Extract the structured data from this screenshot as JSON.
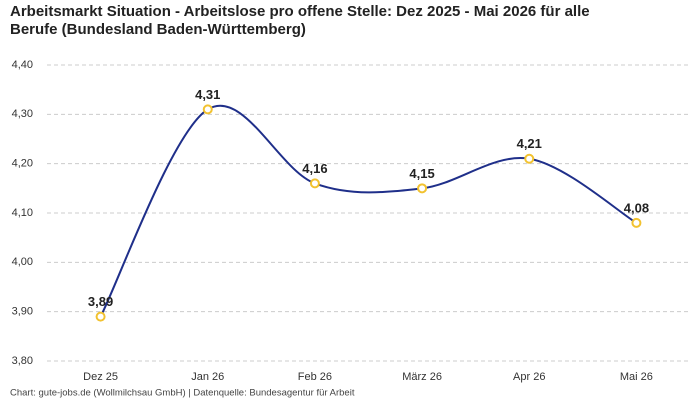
{
  "chart_data": {
    "type": "line",
    "title": "Arbeitsmarkt Situation - Arbeitslose pro offene Stelle: Dez 2025 - Mai 2026 für alle",
    "subtitle": "Berufe (Bundesland Baden-Württemberg)",
    "source": "Chart: gute-jobs.de (Wollmilchsau GmbH) | Datenquelle: Bundesagentur für Arbeit",
    "categories": [
      "Dez 25",
      "Jan 26",
      "Feb 26",
      "März 26",
      "Apr 26",
      "Mai 26"
    ],
    "series": [
      {
        "name": "Arbeitslose pro offene Stelle",
        "color": "#1f2f8a",
        "marker_color": "#f2c230",
        "values": [
          3.89,
          4.31,
          4.16,
          4.15,
          4.21,
          4.08
        ],
        "value_labels": [
          "3,89",
          "4,31",
          "4,16",
          "4,15",
          "4,21",
          "4,08"
        ]
      }
    ],
    "ylim": [
      3.8,
      4.4
    ],
    "yticks": [
      {
        "value": 3.8,
        "label": "3,80"
      },
      {
        "value": 3.9,
        "label": "3,90"
      },
      {
        "value": 4.0,
        "label": "4,00"
      },
      {
        "value": 4.1,
        "label": "4,10"
      },
      {
        "value": 4.2,
        "label": "4,20"
      },
      {
        "value": 4.3,
        "label": "4,30"
      },
      {
        "value": 4.4,
        "label": "4,40"
      }
    ],
    "grid": true
  }
}
